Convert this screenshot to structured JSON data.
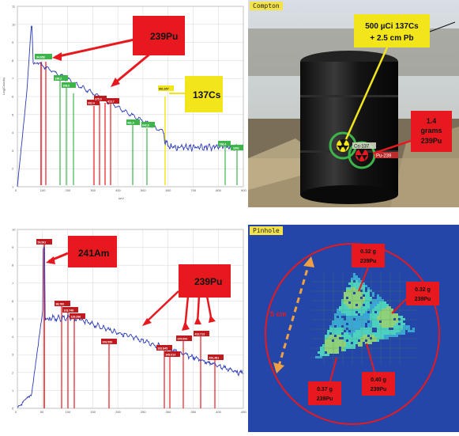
{
  "top_spectrum": {
    "x_ticks": [
      "0",
      "100",
      "200",
      "300",
      "400",
      "500",
      "600",
      "700",
      "800",
      "900"
    ],
    "y_ticks": [
      "1",
      "2",
      "3",
      "4",
      "5",
      "6",
      "7",
      "8",
      "9",
      "10",
      "11"
    ],
    "ylabel": "Log(Counts)",
    "xlabel": "keV",
    "peak_labels": [
      "94.658",
      "186.2",
      "208.0",
      "332.4",
      "375.0",
      "413.7",
      "451.4",
      "642.8",
      "661.657",
      "766.4",
      "1001"
    ],
    "callout_pu239": "239Pu",
    "callout_cs137": "137Cs",
    "colors": {
      "pu": "#e8191e",
      "cs": "#f2e61a",
      "green": "#3db54a",
      "trace": "#2b3ab7"
    }
  },
  "bottom_spectrum": {
    "x_ticks": [
      "0",
      "50",
      "100",
      "150",
      "200",
      "250",
      "300",
      "350",
      "400",
      "450"
    ],
    "y_ticks": [
      "0",
      "1",
      "2",
      "3",
      "4",
      "5",
      "6",
      "7",
      "8",
      "9",
      "10"
    ],
    "peak_labels": [
      "59.541",
      "98.780",
      "103.748",
      "129.296",
      "203.550",
      "332.845",
      "345.014",
      "375.054",
      "413.713",
      "451.481"
    ],
    "callout_am241": "241Am",
    "callout_pu239": "239Pu"
  },
  "compton_panel": {
    "tag": "Compton",
    "source_label_line1": "500 µCi 137Cs",
    "source_label_line2": "+ 2.5 cm Pb",
    "pu_label_line1": "1.4",
    "pu_label_line2": "grams",
    "pu_label_line3": "239Pu",
    "marker_cs": "Cs-137",
    "marker_pu": "Pu-239"
  },
  "pinhole_panel": {
    "tag": "Pinhole",
    "distance_label": "5 cm",
    "masses": [
      "0.32 g 239Pu",
      "0.32 g 239Pu",
      "0.40 g 239Pu",
      "0.37 g 239Pu"
    ]
  }
}
